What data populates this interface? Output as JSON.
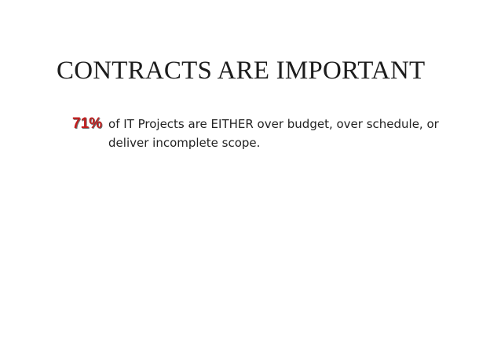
{
  "slide": {
    "title": "CONTRACTS ARE IMPORTANT",
    "bullet": {
      "stat": "71%",
      "text": "of IT Projects are EITHER over budget, over schedule, or deliver incomplete scope."
    }
  },
  "colors": {
    "background": "#ffffff",
    "title": "#1c1c1c",
    "stat": "#c21c1c",
    "body_text": "#222222"
  }
}
